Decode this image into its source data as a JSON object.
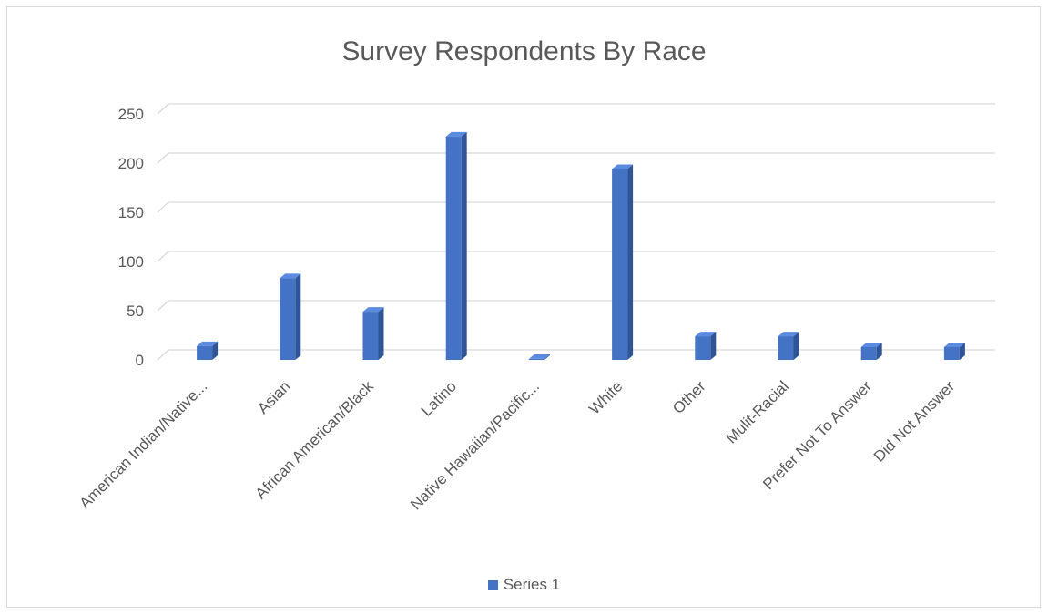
{
  "chart_data": {
    "type": "bar",
    "title": "Survey Respondents By Race",
    "categories": [
      "American Indian/Native...",
      "Asian",
      "African American/Black",
      "Latino",
      "Native Hawaiian/Pacific...",
      "White",
      "Other",
      "Mulit-Racial",
      "Prefer Not To Answer",
      "Did Not Answer"
    ],
    "series": [
      {
        "name": "Series 1",
        "values": [
          14,
          83,
          49,
          227,
          1,
          194,
          24,
          24,
          13,
          13
        ]
      }
    ],
    "yticks": [
      "0",
      "50",
      "100",
      "150",
      "200",
      "250"
    ],
    "ylim": [
      0,
      250
    ],
    "grid": true,
    "legend_position": "bottom",
    "style_3d": true,
    "colors": {
      "front": "#4472c4",
      "side": "#2f5597",
      "top": "#5b8be0",
      "grid": "#d9d9d9",
      "text": "#595959"
    }
  }
}
